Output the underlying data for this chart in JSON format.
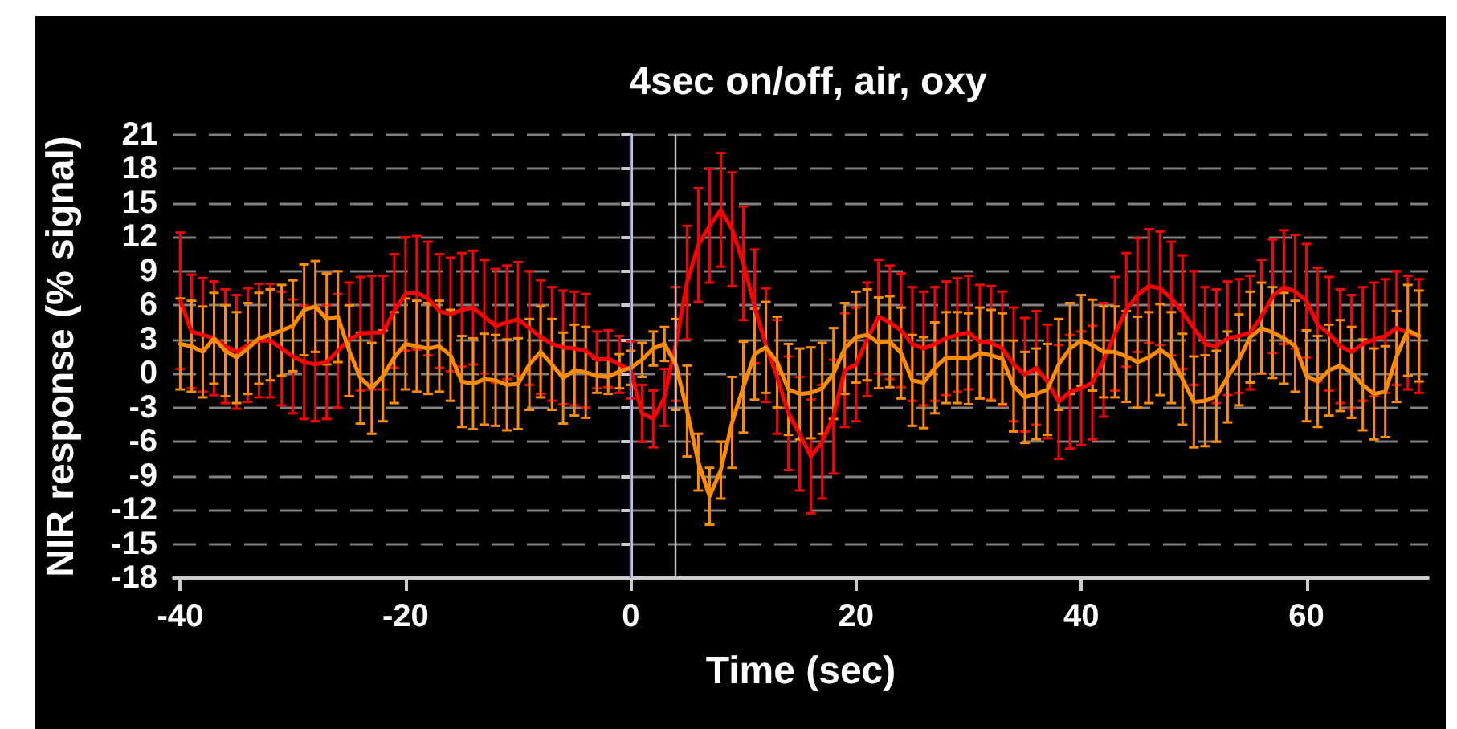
{
  "chart_data": {
    "type": "line",
    "title": "4sec on/off, air, oxy",
    "xlabel": "Time (sec)",
    "ylabel": "NIR response (% signal)",
    "x": [
      -40,
      -39,
      -38,
      -37,
      -36,
      -35,
      -34,
      -33,
      -32,
      -31,
      -30,
      -29,
      -28,
      -27,
      -26,
      -25,
      -24,
      -23,
      -22,
      -21,
      -20,
      -19,
      -18,
      -17,
      -16,
      -15,
      -14,
      -13,
      -12,
      -11,
      -10,
      -9,
      -8,
      -7,
      -6,
      -5,
      -4,
      -3,
      -2,
      -1,
      0,
      1,
      2,
      3,
      4,
      5,
      6,
      7,
      8,
      9,
      10,
      11,
      12,
      13,
      14,
      15,
      16,
      17,
      18,
      19,
      20,
      21,
      22,
      23,
      24,
      25,
      26,
      27,
      28,
      29,
      30,
      31,
      32,
      33,
      34,
      35,
      36,
      37,
      38,
      39,
      40,
      41,
      42,
      43,
      44,
      45,
      46,
      47,
      48,
      49,
      50,
      51,
      52,
      53,
      54,
      55,
      56,
      57,
      58,
      59,
      60,
      61,
      62,
      63,
      64,
      65,
      66,
      67,
      68,
      69,
      70
    ],
    "series": [
      {
        "color": "#ff0000",
        "values": [
          6.4,
          3.7,
          3.4,
          3.1,
          2.4,
          1.9,
          2.5,
          2.9,
          2.9,
          2.2,
          1.5,
          1.0,
          0.8,
          1.0,
          2.0,
          3.0,
          3.5,
          3.6,
          3.6,
          5.5,
          7.0,
          7.1,
          6.6,
          5.5,
          5.2,
          5.6,
          5.8,
          5.0,
          4.2,
          4.5,
          4.8,
          4.0,
          3.2,
          2.6,
          2.3,
          2.2,
          2.0,
          1.2,
          1.3,
          0.8,
          0.3,
          -3.5,
          -4.0,
          -2.1,
          2.6,
          8.0,
          11.3,
          13.0,
          14.4,
          12.7,
          9.7,
          5.9,
          2.5,
          -0.3,
          -3.5,
          -5.3,
          -7.3,
          -6.0,
          -3.8,
          0.3,
          0.8,
          3.0,
          5.0,
          4.5,
          3.8,
          2.6,
          2.2,
          2.6,
          3.1,
          3.4,
          3.6,
          2.8,
          2.7,
          2.2,
          0.8,
          -0.1,
          0.5,
          -0.7,
          -2.5,
          -1.6,
          -1.3,
          -0.8,
          1.2,
          3.5,
          5.6,
          6.9,
          7.7,
          7.5,
          6.6,
          5.4,
          4.0,
          2.6,
          2.4,
          3.1,
          3.3,
          3.6,
          5.0,
          6.8,
          7.6,
          7.2,
          6.4,
          4.3,
          3.5,
          2.4,
          1.9,
          2.6,
          3.0,
          3.3,
          4.0,
          3.6,
          3.3
        ],
        "errors": [
          6,
          5,
          5,
          5,
          5,
          5,
          5,
          5,
          5,
          5,
          5,
          5,
          5,
          5,
          5,
          5,
          5,
          5,
          5,
          5,
          5,
          5,
          5,
          5,
          5,
          5,
          5,
          5,
          5,
          5,
          5,
          5,
          5,
          5,
          5,
          5,
          5,
          2.5,
          2.5,
          2.5,
          2.5,
          2.5,
          2.5,
          2.5,
          5,
          5,
          5,
          5,
          5,
          5,
          5,
          5,
          5,
          5,
          5,
          5,
          5,
          5,
          5,
          5,
          5,
          5,
          5,
          5,
          5,
          5,
          5,
          5,
          5,
          5,
          5,
          5,
          5,
          5,
          5,
          5,
          5,
          5,
          5,
          5,
          5,
          5,
          5,
          5,
          5,
          5,
          5,
          5,
          5,
          5,
          5,
          5,
          5,
          5,
          5,
          5,
          5,
          5,
          5,
          5,
          5,
          5,
          5,
          5,
          5,
          5,
          5,
          5,
          5,
          5,
          5
        ]
      },
      {
        "color": "#ff8c00",
        "values": [
          2.6,
          2.4,
          1.9,
          3.1,
          2.0,
          1.4,
          2.2,
          3.1,
          3.4,
          3.8,
          4.2,
          5.6,
          5.9,
          4.8,
          5.0,
          2.0,
          -0.4,
          -1.3,
          -0.2,
          1.4,
          2.6,
          2.4,
          2.2,
          2.4,
          1.6,
          -0.7,
          -0.9,
          -0.5,
          -0.6,
          -1.0,
          -0.9,
          0.8,
          1.9,
          0.8,
          -0.4,
          0.3,
          0.1,
          -0.2,
          -0.3,
          0.2,
          0.5,
          1.2,
          2.2,
          2.6,
          0.8,
          -3.3,
          -7.8,
          -10.8,
          -8.5,
          -4.3,
          -1.2,
          1.7,
          2.3,
          1.0,
          -1.4,
          -1.8,
          -1.7,
          -1.3,
          0.0,
          2.2,
          3.2,
          3.4,
          2.7,
          2.8,
          1.8,
          -0.6,
          -0.8,
          0.5,
          1.4,
          1.4,
          1.3,
          1.8,
          1.6,
          1.3,
          -1.1,
          -2.1,
          -1.8,
          -1.4,
          0.8,
          2.2,
          2.9,
          2.5,
          1.9,
          1.9,
          1.5,
          1.0,
          1.4,
          2.1,
          1.4,
          -0.5,
          -2.5,
          -2.4,
          -2.0,
          -0.3,
          1.2,
          3.2,
          4.0,
          3.6,
          3.1,
          2.4,
          -0.2,
          -0.7,
          0.3,
          0.7,
          0.1,
          -1.0,
          -1.8,
          -1.6,
          1.5,
          3.8,
          3.3
        ],
        "errors": [
          4,
          4,
          4,
          4,
          4,
          4,
          4,
          4,
          4,
          4,
          4,
          4,
          4,
          4,
          4,
          4,
          4,
          4,
          4,
          4,
          4,
          4,
          4,
          4,
          4,
          4,
          4,
          4,
          4,
          4,
          4,
          4,
          4,
          4,
          4,
          4,
          4,
          1.5,
          1.5,
          1.5,
          1.5,
          1.5,
          1.5,
          1.5,
          4,
          4,
          2.5,
          2.5,
          2.5,
          4,
          4,
          4,
          4,
          4,
          4,
          4,
          4,
          4,
          4,
          4,
          4,
          4,
          4,
          4,
          4,
          4,
          4,
          4,
          4,
          4,
          4,
          4,
          4,
          4,
          4,
          4,
          4,
          4,
          4,
          4,
          4,
          4,
          4,
          4,
          4,
          4,
          4,
          4,
          4,
          4,
          4,
          4,
          4,
          4,
          4,
          4,
          4,
          4,
          4,
          4,
          4,
          4,
          4,
          4,
          4,
          4,
          4,
          4,
          4,
          4,
          4
        ]
      }
    ],
    "xlim": [
      -40.6,
      70.8
    ],
    "xticks": [
      -40,
      -20,
      0,
      20,
      40,
      60
    ],
    "ylim": [
      -18,
      21
    ],
    "yticks": [
      -18,
      -15,
      -12,
      -9,
      -6,
      -3,
      0,
      3,
      6,
      9,
      12,
      15,
      18,
      21
    ],
    "ref_lines": [
      {
        "axis": "x",
        "value": 0,
        "color": "#8080c0"
      },
      {
        "axis": "x",
        "value": 4,
        "color": "#c8c8c8"
      }
    ],
    "grid": "y",
    "marker": "none",
    "line_style": "solid"
  }
}
